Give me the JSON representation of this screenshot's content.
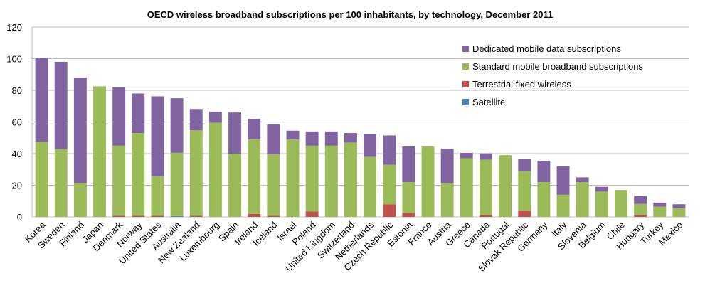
{
  "chart_data": {
    "type": "bar",
    "stacked": true,
    "title": "OECD wireless broadband subscriptions per 100 inhabitants, by technology, December 2011",
    "xlabel": "",
    "ylabel": "",
    "ylim": [
      0,
      120
    ],
    "yticks": [
      0,
      20,
      40,
      60,
      80,
      100,
      120
    ],
    "grid": true,
    "legend_position": "top-right",
    "categories": [
      "Korea",
      "Sweden",
      "Finland",
      "Japan",
      "Denmark",
      "Norway",
      "United States",
      "Australia",
      "New Zealand",
      "Luxembourg",
      "Spain",
      "Ireland",
      "Iceland",
      "Israel",
      "Poland",
      "United Kingdom",
      "Switzerland",
      "Netherlands",
      "Czech Republic",
      "Estonia",
      "France",
      "Austria",
      "Greece",
      "Canada",
      "Portugal",
      "Slovak Republic",
      "Germany",
      "Italy",
      "Slovenia",
      "Belgium",
      "Chile",
      "Hungary",
      "Turkey",
      "Mexico"
    ],
    "series": [
      {
        "name": "Satellite",
        "color": "#4f81bd",
        "values": [
          0,
          0,
          0,
          0,
          0,
          0,
          0,
          0.5,
          0,
          0,
          0,
          0,
          0,
          0,
          0,
          0,
          0,
          0,
          0,
          0,
          0,
          0,
          0,
          0,
          0,
          0,
          0,
          0,
          0,
          0,
          0,
          0,
          0,
          0
        ]
      },
      {
        "name": "Terrestrial fixed wireless",
        "color": "#c0504d",
        "values": [
          0,
          0,
          0,
          0,
          0.7,
          0.7,
          0.7,
          0,
          0.7,
          0,
          0,
          1.8,
          0.7,
          0,
          3.5,
          0,
          0,
          0,
          8,
          2.5,
          0,
          0,
          0,
          1.2,
          0,
          4,
          0,
          0,
          0,
          0,
          0,
          1.2,
          0,
          0
        ]
      },
      {
        "name": "Standard mobile broadband subscriptions",
        "color": "#9bbb59",
        "values": [
          47.5,
          43,
          21.5,
          82.5,
          44.3,
          52.3,
          25,
          40,
          54,
          59.5,
          40,
          47.2,
          38.8,
          49,
          41.5,
          45,
          47,
          38,
          25,
          19.5,
          44.5,
          21.5,
          37,
          35,
          39,
          25,
          22,
          14,
          22,
          16,
          17,
          7,
          6.5,
          5.5
        ]
      },
      {
        "name": "Dedicated mobile data subscriptions",
        "color": "#8064a2",
        "values": [
          53,
          55,
          66.5,
          0,
          37,
          25,
          50.5,
          34.5,
          13.5,
          7,
          26,
          13,
          19,
          5.5,
          9,
          9,
          6,
          14.5,
          18.5,
          22.5,
          0,
          21.5,
          3.5,
          4,
          0,
          7.5,
          13.5,
          18,
          3,
          3,
          0,
          5,
          2.5,
          2.5
        ]
      }
    ],
    "legend_order": [
      "Dedicated mobile data subscriptions",
      "Standard mobile broadband subscriptions",
      "Terrestrial fixed wireless",
      "Satellite"
    ]
  }
}
